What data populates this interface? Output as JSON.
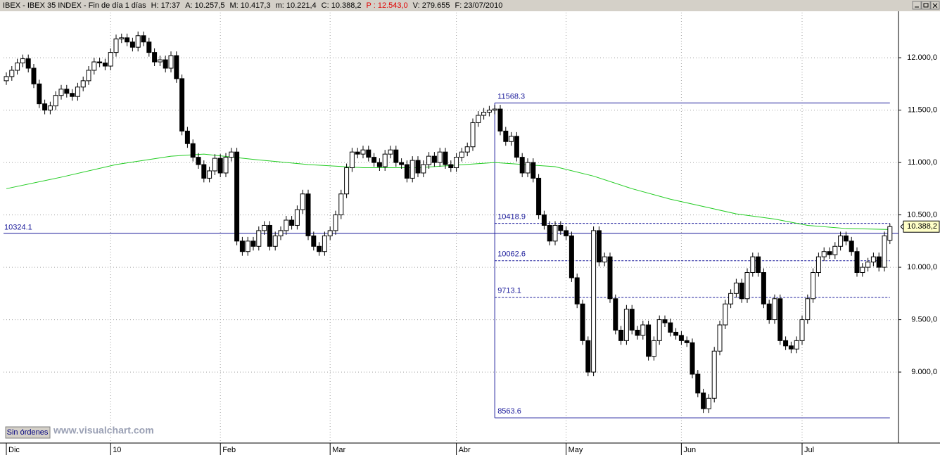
{
  "header": {
    "items": [
      "IBEX - IBEX 35 INDEX - Fin de día 1 días",
      "H: 17:37",
      "A: 10.257,5",
      "M: 10.417,3",
      "m: 10.221,4",
      "C: 10.388,2",
      "P : 12.543,0",
      "V: 279.655",
      "F: 23/07/2010"
    ]
  },
  "footer": {
    "button": "Sin órdenes",
    "watermark": "www.visualchart.com"
  },
  "chart_data": {
    "type": "candlestick",
    "categories": [
      "Dic",
      null,
      null,
      null,
      null,
      null,
      null,
      null,
      null,
      null,
      null,
      null,
      null,
      null,
      null,
      null,
      null,
      null,
      null,
      "10",
      null,
      null,
      null,
      null,
      null,
      null,
      null,
      null,
      null,
      null,
      null,
      null,
      null,
      null,
      null,
      null,
      null,
      null,
      null,
      "Feb",
      null,
      null,
      null,
      null,
      null,
      null,
      null,
      null,
      null,
      null,
      null,
      null,
      null,
      null,
      null,
      null,
      null,
      null,
      null,
      "Mar",
      null,
      null,
      null,
      null,
      null,
      null,
      null,
      null,
      null,
      null,
      null,
      null,
      null,
      null,
      null,
      null,
      null,
      null,
      null,
      null,
      null,
      null,
      "Abr",
      null,
      null,
      null,
      null,
      null,
      null,
      null,
      null,
      null,
      null,
      null,
      null,
      null,
      null,
      null,
      null,
      null,
      null,
      null,
      "May",
      null,
      null,
      null,
      null,
      null,
      null,
      null,
      null,
      null,
      null,
      null,
      null,
      null,
      null,
      null,
      null,
      null,
      null,
      null,
      null,
      "Jun",
      null,
      null,
      null,
      null,
      null,
      null,
      null,
      null,
      null,
      null,
      null,
      null,
      null,
      null,
      null,
      null,
      null,
      null,
      null,
      null,
      null,
      "Jul",
      null,
      null,
      null,
      null,
      null,
      null,
      null,
      null,
      null,
      null,
      null,
      null,
      null,
      null,
      null,
      null
    ],
    "open": [
      11780,
      11820,
      11880,
      11950,
      11990,
      11900,
      11750,
      11560,
      11500,
      11540,
      11640,
      11700,
      11660,
      11630,
      11720,
      11780,
      11880,
      11960,
      11950,
      11920,
      12050,
      12180,
      12190,
      12150,
      12100,
      12210,
      12150,
      12050,
      11960,
      11980,
      11900,
      12020,
      11800,
      11300,
      11180,
      11050,
      10980,
      10850,
      10920,
      11040,
      10900,
      11050,
      11100,
      10250,
      10150,
      10250,
      10200,
      10350,
      10400,
      10200,
      10300,
      10350,
      10450,
      10400,
      10550,
      10700,
      10300,
      10200,
      10150,
      10300,
      10350,
      10500,
      10700,
      10950,
      11100,
      11080,
      11120,
      11050,
      11000,
      10960,
      11080,
      11120,
      11000,
      10980,
      10850,
      11020,
      10900,
      10980,
      11060,
      11000,
      11100,
      10980,
      10950,
      11050,
      11100,
      11150,
      11380,
      11450,
      11480,
      11500,
      11510,
      11300,
      11200,
      11250,
      11050,
      10900,
      11000,
      10850,
      10500,
      10400,
      10250,
      10400,
      10350,
      10300,
      9900,
      9650,
      9300,
      9000,
      10350,
      10050,
      10100,
      9700,
      9400,
      9300,
      9600,
      9400,
      9350,
      9450,
      9150,
      9300,
      9500,
      9470,
      9380,
      9350,
      9300,
      9280,
      8980,
      8800,
      8650,
      8750,
      9200,
      9450,
      9650,
      9750,
      9850,
      9700,
      9950,
      10100,
      9950,
      9650,
      9500,
      9700,
      9300,
      9250,
      9220,
      9300,
      9500,
      9700,
      9950,
      10100,
      10150,
      10120,
      10200,
      10300,
      10250,
      10150,
      9950,
      10000,
      10050,
      10100,
      10000,
      10257.5
    ],
    "high": [
      11860,
      11920,
      11990,
      12030,
      12030,
      11940,
      11790,
      11600,
      11580,
      11680,
      11740,
      11740,
      11700,
      11760,
      11820,
      11920,
      12000,
      12000,
      11990,
      12090,
      12220,
      12230,
      12230,
      12190,
      12250,
      12250,
      12190,
      12090,
      12020,
      12020,
      12060,
      12060,
      11840,
      11340,
      11220,
      11090,
      11020,
      10960,
      11080,
      11080,
      11090,
      11140,
      11140,
      10290,
      10290,
      10290,
      10390,
      10440,
      10440,
      10340,
      10390,
      10490,
      10490,
      10590,
      10740,
      10740,
      10340,
      10240,
      10340,
      10390,
      10540,
      10740,
      10990,
      11140,
      11140,
      11160,
      11160,
      11090,
      11040,
      11120,
      11160,
      11160,
      11040,
      11020,
      11060,
      11060,
      11020,
      11100,
      11100,
      11140,
      11140,
      11020,
      11090,
      11140,
      11190,
      11420,
      11490,
      11520,
      11540,
      11550,
      11550,
      11340,
      11290,
      11290,
      11090,
      11040,
      11040,
      10890,
      10540,
      10440,
      10440,
      10440,
      10390,
      10340,
      9940,
      9690,
      9340,
      10390,
      10390,
      10140,
      10140,
      9740,
      9440,
      9640,
      9640,
      9440,
      9490,
      9490,
      9340,
      9540,
      9540,
      9510,
      9420,
      9390,
      9340,
      9320,
      9020,
      8840,
      8790,
      9240,
      9490,
      9690,
      9790,
      9890,
      9890,
      9990,
      10140,
      10140,
      9990,
      9690,
      9740,
      9740,
      9340,
      9290,
      9340,
      9540,
      9740,
      9990,
      10140,
      10190,
      10190,
      10240,
      10340,
      10340,
      10290,
      10190,
      10040,
      10090,
      10140,
      10140,
      10340,
      10417.3
    ],
    "low": [
      11740,
      11780,
      11840,
      11910,
      11860,
      11710,
      11520,
      11460,
      11460,
      11500,
      11600,
      11620,
      11590,
      11590,
      11680,
      11740,
      11840,
      11910,
      11880,
      11880,
      12010,
      12140,
      12110,
      12060,
      12060,
      12110,
      12010,
      11920,
      11920,
      11860,
      11860,
      11760,
      11260,
      11140,
      11010,
      10940,
      10810,
      10810,
      10880,
      10860,
      10860,
      11010,
      10210,
      10110,
      10110,
      10160,
      10160,
      10310,
      10160,
      10160,
      10260,
      10310,
      10360,
      10360,
      10510,
      10260,
      10160,
      10110,
      10110,
      10260,
      10310,
      10460,
      10660,
      10910,
      11040,
      11040,
      11010,
      10960,
      10920,
      10920,
      11040,
      10960,
      10940,
      10810,
      10810,
      10860,
      10860,
      10940,
      10960,
      10960,
      10940,
      10910,
      10910,
      11010,
      11060,
      11110,
      11340,
      11410,
      11440,
      11460,
      11260,
      11160,
      11160,
      11010,
      10860,
      10860,
      10810,
      10460,
      10360,
      10210,
      10210,
      10310,
      10260,
      9860,
      9610,
      9260,
      8960,
      8960,
      10010,
      10010,
      9660,
      9360,
      9260,
      9260,
      9360,
      9310,
      9310,
      9110,
      9110,
      9260,
      9430,
      9340,
      9310,
      9260,
      9240,
      8940,
      8760,
      8610,
      8610,
      8710,
      9160,
      9410,
      9610,
      9710,
      9660,
      9660,
      9910,
      9910,
      9610,
      9460,
      9460,
      9260,
      9210,
      9180,
      9180,
      9260,
      9460,
      9660,
      9910,
      10060,
      10080,
      10080,
      10160,
      10210,
      10110,
      9910,
      9910,
      9960,
      10010,
      9960,
      9960,
      10221.4
    ],
    "close": [
      11820,
      11880,
      11950,
      11990,
      11900,
      11750,
      11560,
      11500,
      11540,
      11640,
      11700,
      11660,
      11630,
      11720,
      11780,
      11880,
      11960,
      11950,
      11920,
      12050,
      12180,
      12190,
      12150,
      12100,
      12210,
      12150,
      12050,
      11960,
      11980,
      11900,
      12020,
      11800,
      11300,
      11180,
      11050,
      10980,
      10850,
      10920,
      11040,
      10900,
      11050,
      11100,
      10250,
      10150,
      10250,
      10200,
      10350,
      10400,
      10200,
      10300,
      10350,
      10450,
      10400,
      10550,
      10700,
      10300,
      10200,
      10150,
      10300,
      10350,
      10500,
      10700,
      10950,
      11100,
      11080,
      11120,
      11050,
      11000,
      10960,
      11080,
      11120,
      11000,
      10980,
      10850,
      11020,
      10900,
      10980,
      11060,
      11000,
      11100,
      10980,
      10950,
      11050,
      11100,
      11150,
      11380,
      11450,
      11480,
      11500,
      11510,
      11300,
      11200,
      11250,
      11050,
      10900,
      11000,
      10850,
      10500,
      10400,
      10250,
      10400,
      10350,
      10300,
      9900,
      9650,
      9300,
      9000,
      10350,
      10050,
      10100,
      9700,
      9400,
      9300,
      9600,
      9400,
      9350,
      9450,
      9150,
      9300,
      9500,
      9470,
      9380,
      9350,
      9300,
      9280,
      8980,
      8800,
      8650,
      8750,
      9200,
      9450,
      9650,
      9750,
      9850,
      9700,
      9950,
      10100,
      9950,
      9650,
      9500,
      9700,
      9300,
      9250,
      9220,
      9300,
      9500,
      9700,
      9950,
      10100,
      10150,
      10120,
      10200,
      10300,
      10250,
      10150,
      9950,
      10000,
      10050,
      10100,
      10000,
      10300,
      10388.2
    ],
    "up_color": "#ffffff",
    "down_color": "#000000",
    "moving_average": {
      "color": "#22cc22",
      "x": [
        0,
        10,
        20,
        30,
        36,
        45,
        55,
        65,
        75,
        89,
        100,
        107,
        114,
        121,
        127,
        133,
        140,
        146,
        153,
        161
      ],
      "values": [
        10750,
        10860,
        10980,
        11060,
        11080,
        11030,
        10980,
        10950,
        10950,
        11000,
        10960,
        10870,
        10750,
        10650,
        10580,
        10510,
        10460,
        10400,
        10370,
        10360
      ]
    },
    "retracement": {
      "x_start": 89,
      "color": "#1a1a9a",
      "levels": [
        {
          "value": 11568.3,
          "style": "solid"
        },
        {
          "value": 10418.9,
          "style": "dashed"
        },
        {
          "value": 10062.6,
          "style": "dashed"
        },
        {
          "value": 9713.1,
          "style": "dashed"
        },
        {
          "value": 8563.6,
          "style": "solid"
        }
      ]
    },
    "reference_line": {
      "value": 10324.1,
      "color": "#1a1a9a"
    },
    "last_price": {
      "value": 10388.2,
      "label": "10.388,2"
    },
    "ylim": [
      8336,
      12430
    ],
    "yticks": [
      {
        "value": 9000,
        "label": "9.000,0"
      },
      {
        "value": 9500,
        "label": "9.500,0"
      },
      {
        "value": 10000,
        "label": "10.000,0"
      },
      {
        "value": 10500,
        "label": "10.500,0"
      },
      {
        "value": 11000,
        "label": "11.000,0"
      },
      {
        "value": 11500,
        "label": "11.500,0"
      },
      {
        "value": 12000,
        "label": "12.000,0"
      }
    ],
    "grid": true
  }
}
